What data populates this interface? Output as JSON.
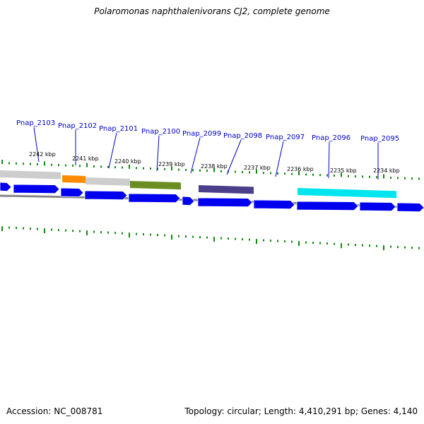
{
  "map": {
    "title": "Polaromonas naphthalenivorans CJ2, complete genome",
    "accession_text": "Accession: NC_008781",
    "summary_text": "Topology: circular; Length: 4,410,291 bp; Genes: 4,140"
  },
  "colors": {
    "gene_blue": "#0000ee",
    "tick_green": "#118811",
    "backbone_gray": "#888888",
    "label_blue": "#0000cc",
    "feature_gray": "#c0c0c0",
    "feature_orange": "#ff8c00",
    "feature_olive": "#6b8e23",
    "feature_purple": "#4b3f8c",
    "feature_cyan": "#00e5ee"
  },
  "gene_labels": [
    "Pnap_2103",
    "Pnap_2102",
    "Pnap_2101",
    "Pnap_2100",
    "Pnap_2099",
    "Pnap_2098",
    "Pnap_2097",
    "Pnap_2096",
    "Pnap_2095"
  ],
  "kbp_labels": [
    "2242 kbp",
    "2241 kbp",
    "2240 kbp",
    "2239 kbp",
    "2238 kbp",
    "2237 kbp",
    "2236 kbp",
    "2235 kbp",
    "2234 kbp"
  ],
  "feature_colors": [
    "feature_gray",
    "feature_orange",
    "feature_gray",
    "feature_olive",
    "feature_purple",
    "feature_cyan"
  ]
}
